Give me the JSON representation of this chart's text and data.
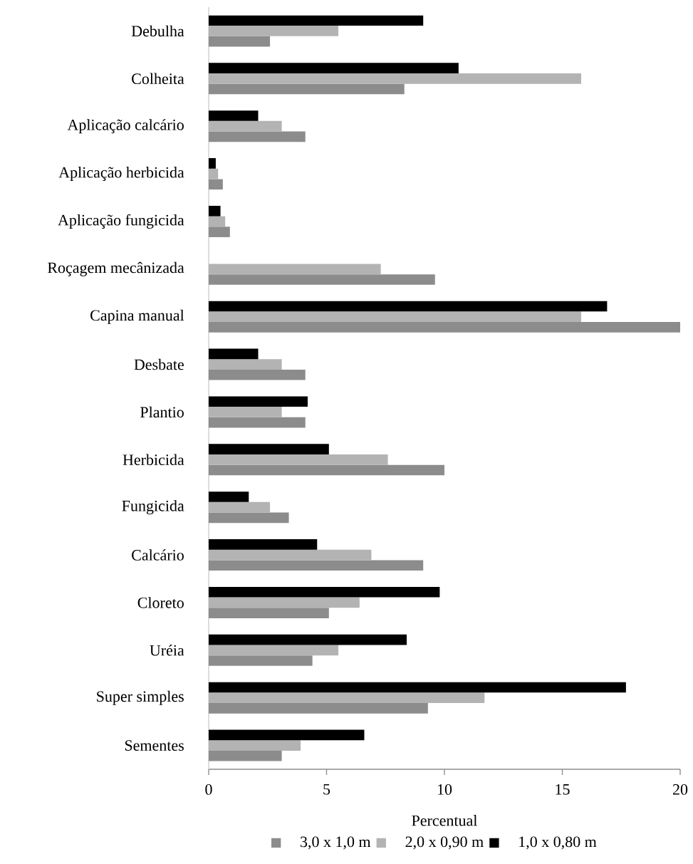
{
  "chart_data": {
    "type": "bar",
    "orientation": "horizontal",
    "xlabel": "Percentual",
    "categories": [
      "Debulha",
      "Colheita",
      "Aplicação calcário",
      "Aplicação herbicida",
      "Aplicação fungicida",
      "Roçagem mecânizada",
      "Capina manual",
      "Desbate",
      "Plantio",
      "Herbicida",
      "Fungicida",
      "Calcário",
      "Cloreto",
      "Uréia",
      "Super simples",
      "Sementes"
    ],
    "series": [
      {
        "name": "3,0 x 1,0 m",
        "color": "#8c8c8c",
        "values": [
          2.6,
          8.3,
          4.1,
          0.6,
          0.9,
          9.6,
          20.0,
          4.1,
          4.1,
          10.0,
          3.4,
          9.1,
          5.1,
          4.4,
          9.3,
          3.1
        ]
      },
      {
        "name": "2,0 x 0,90 m",
        "color": "#b3b3b3",
        "values": [
          5.5,
          15.8,
          3.1,
          0.4,
          0.7,
          7.3,
          15.8,
          3.1,
          3.1,
          7.6,
          2.6,
          6.9,
          6.4,
          5.5,
          11.7,
          3.9
        ]
      },
      {
        "name": "1,0 x 0,80 m",
        "color": "#000000",
        "values": [
          9.1,
          10.6,
          2.1,
          0.3,
          0.5,
          null,
          16.9,
          2.1,
          4.2,
          5.1,
          1.7,
          4.6,
          9.8,
          8.4,
          17.7,
          6.6
        ]
      }
    ],
    "xlim": [
      0,
      20
    ],
    "xticks": [
      0,
      5,
      10,
      15,
      20
    ],
    "legend": "bottom",
    "grid": false
  }
}
